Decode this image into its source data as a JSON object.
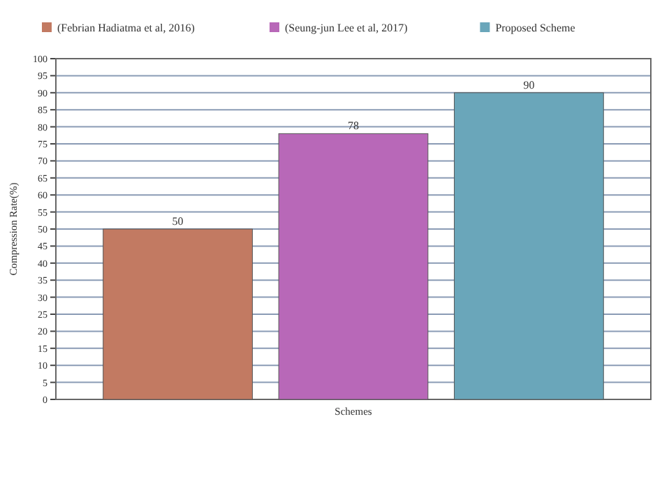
{
  "chart_data": {
    "type": "bar",
    "xlabel": "Schemes",
    "ylabel": "Compression Rate(%)",
    "categories": [
      null
    ],
    "series": [
      {
        "name": "(Febrian Hadiatma et al, 2016)",
        "color": "#c27a62",
        "values": [
          50
        ]
      },
      {
        "name": "(Seung-jun Lee et al, 2017)",
        "color": "#b868b8",
        "values": [
          78
        ]
      },
      {
        "name": "Proposed Scheme",
        "color": "#6aa6ba",
        "values": [
          90
        ]
      }
    ],
    "ylim": [
      0,
      100
    ],
    "yticks": [
      0,
      5,
      10,
      15,
      20,
      25,
      30,
      35,
      40,
      45,
      50,
      55,
      60,
      65,
      70,
      75,
      80,
      85,
      90,
      95,
      100
    ],
    "grid": "y",
    "legend": "top left",
    "data_labels": true
  }
}
